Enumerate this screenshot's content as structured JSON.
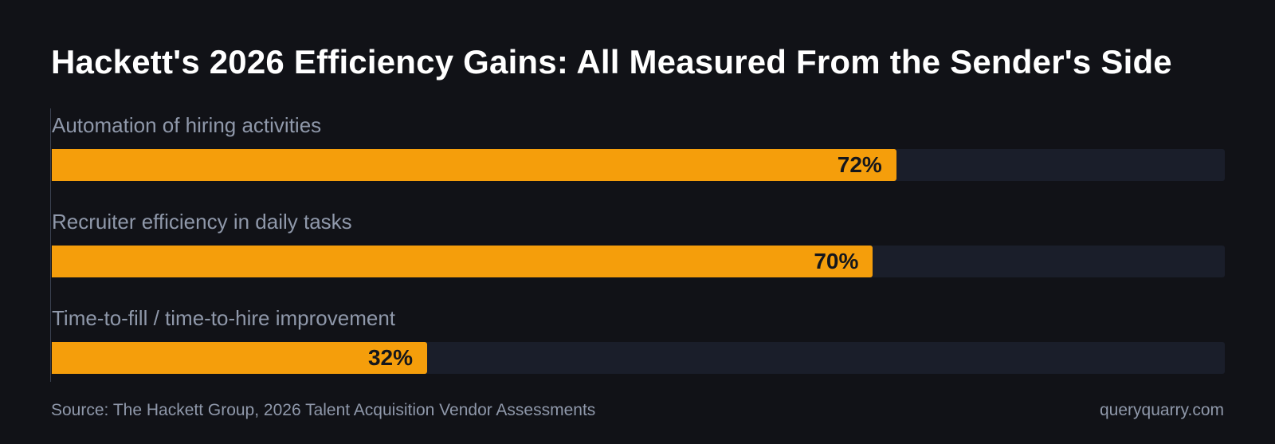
{
  "title": "Hackett's 2026 Efficiency Gains: All Measured From the Sender's Side",
  "chart_data": {
    "type": "bar",
    "orientation": "horizontal",
    "title": "Hackett's 2026 Efficiency Gains: All Measured From the Sender's Side",
    "categories": [
      "Automation of hiring activities",
      "Recruiter efficiency in daily tasks",
      "Time-to-fill / time-to-hire improvement"
    ],
    "values": [
      72,
      70,
      32
    ],
    "value_labels": [
      "72%",
      "70%",
      "32%"
    ],
    "unit": "%",
    "xlim": [
      0,
      100
    ],
    "grid": false,
    "bar_color": "#f59e0b",
    "track_color": "#1a1e2a"
  },
  "footer": {
    "source": "Source: The Hackett Group, 2026 Talent Acquisition Vendor Assessments",
    "brand": "queryquarry.com"
  },
  "colors": {
    "background": "#111217",
    "title": "#ffffff",
    "label": "#8f98aa",
    "bar": "#f59e0b",
    "track": "#1a1e2a",
    "value_text": "#14161c"
  }
}
